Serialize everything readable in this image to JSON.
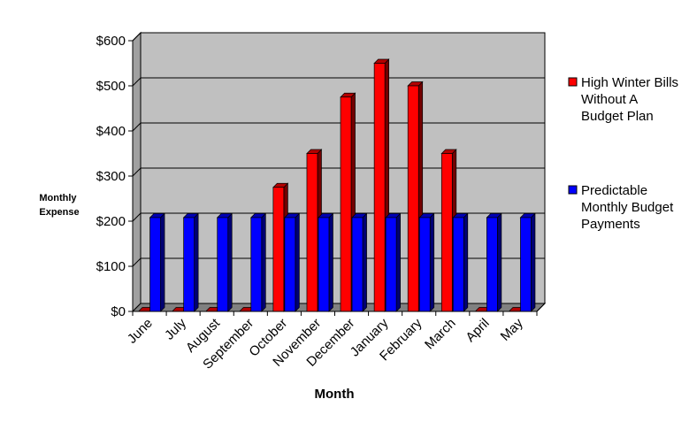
{
  "chart_data": {
    "type": "bar",
    "title": "",
    "xlabel": "Month",
    "ylabel_lines": [
      "Monthly",
      "Expense"
    ],
    "categories": [
      "June",
      "July",
      "August",
      "September",
      "October",
      "November",
      "December",
      "January",
      "February",
      "March",
      "April",
      "May"
    ],
    "series": [
      {
        "name_lines": [
          "High Winter Bills",
          "Without A",
          "Budget Plan"
        ],
        "color": "#ff0000",
        "values": [
          0,
          0,
          0,
          0,
          275,
          350,
          475,
          550,
          500,
          350,
          0,
          0
        ]
      },
      {
        "name_lines": [
          "Predictable",
          "Monthly Budget",
          "Payments"
        ],
        "color": "#0000ff",
        "values": [
          208,
          208,
          208,
          208,
          208,
          208,
          208,
          208,
          208,
          208,
          208,
          208
        ]
      }
    ],
    "y_ticks": [
      0,
      100,
      200,
      300,
      400,
      500,
      600
    ],
    "y_tick_labels": [
      "$0",
      "$100",
      "$200",
      "$300",
      "$400",
      "$500",
      "$600"
    ],
    "ylim": [
      0,
      600
    ],
    "grid": true,
    "legend_position": "right",
    "style": "3d-clustered-column",
    "colors": {
      "plot_background": "#c0c0c0",
      "floor": "#808080"
    }
  }
}
